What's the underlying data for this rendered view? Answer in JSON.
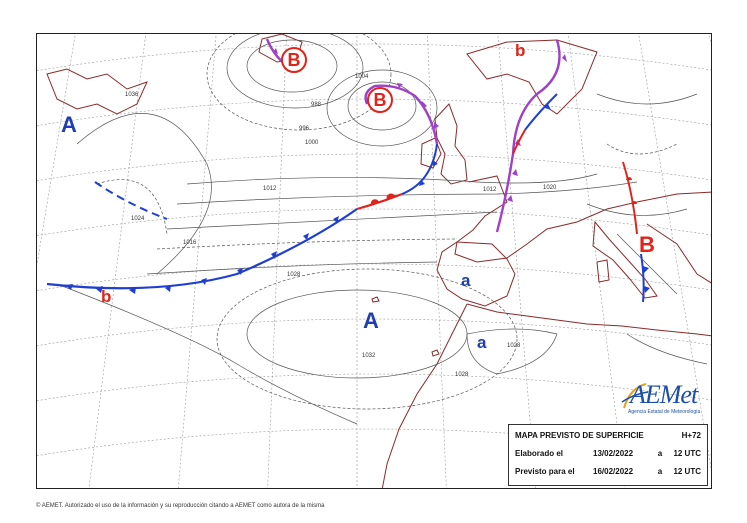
{
  "colors": {
    "high": "#1f3fb0",
    "low": "#e2231a",
    "cold_front": "#1f3fd0",
    "warm_front": "#e2231a",
    "occluded_front": "#a040c8",
    "coastline": "#8b2a2a",
    "isobar": "#555555",
    "graticule": "#9a9a9a"
  },
  "pressure_systems": {
    "high_west": "A",
    "high_center": "A",
    "high_iberia": "a",
    "high_africa": "a",
    "low_north": "B",
    "low_iceland": "B",
    "low_scandinavia": "b",
    "low_atlantic": "b",
    "low_italy": "B"
  },
  "isobar_values": {
    "v980": "980",
    "v988": "988",
    "v996": "996",
    "v1000": "1000",
    "v1004": "1004",
    "v1012a": "1012",
    "v1012b": "1012",
    "v1016": "1016",
    "v1020": "1020",
    "v1024": "1024",
    "v1028a": "1028",
    "v1028b": "1028",
    "v1028c": "1028",
    "v1032": "1032",
    "v1036": "1036"
  },
  "info_box": {
    "title": "MAPA PREVISTO DE SUPERFICIE",
    "lead_time": "H+72",
    "elaborated_label": "Elaborado el",
    "elaborated_date": "13/02/2022",
    "elaborated_a": "a",
    "elaborated_time": "12 UTC",
    "valid_label": "Previsto para el",
    "valid_date": "16/02/2022",
    "valid_a": "a",
    "valid_time": "12 UTC"
  },
  "logo": {
    "name": "AEMET",
    "display": "AEMet",
    "subtitle": "Agencia Estatal de Meteorología"
  },
  "footer": "© AEMET. Autorizado el uso de la información y su reproducción citando a AEMET como autora de la misma"
}
